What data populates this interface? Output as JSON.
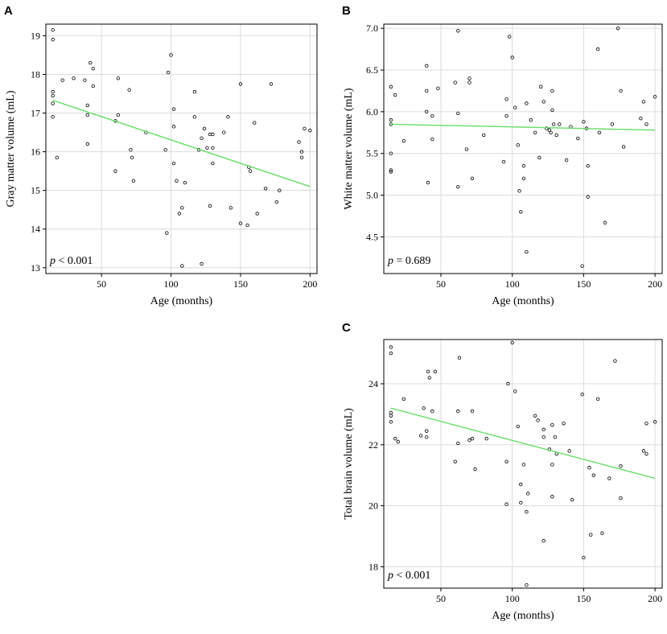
{
  "chart_data": [
    {
      "panel_letter": "A",
      "type": "scatter",
      "xlabel": "Age (months)",
      "ylabel": "Gray matter volume (mL)",
      "xlim": [
        10,
        205
      ],
      "ylim": [
        12.85,
        19.3
      ],
      "xticks": [
        50,
        100,
        150,
        200
      ],
      "yticks": [
        13,
        14,
        15,
        16,
        17,
        18,
        19
      ],
      "pvalue": {
        "p": "p",
        "text": " < 0.001"
      },
      "fit_line": {
        "color": "#66dd66",
        "x": [
          15,
          200
        ],
        "y": [
          17.33,
          15.1
        ]
      },
      "points": [
        [
          15,
          19.15
        ],
        [
          15,
          18.9
        ],
        [
          15,
          17.55
        ],
        [
          15,
          17.45
        ],
        [
          15,
          17.25
        ],
        [
          15,
          16.9
        ],
        [
          18,
          15.85
        ],
        [
          22,
          17.85
        ],
        [
          30,
          17.9
        ],
        [
          38,
          17.85
        ],
        [
          40,
          17.2
        ],
        [
          40,
          16.95
        ],
        [
          40,
          16.2
        ],
        [
          42,
          18.3
        ],
        [
          44,
          18.15
        ],
        [
          44,
          17.7
        ],
        [
          60,
          16.8
        ],
        [
          60,
          15.5
        ],
        [
          62,
          17.9
        ],
        [
          62,
          16.95
        ],
        [
          70,
          17.6
        ],
        [
          71,
          16.05
        ],
        [
          72,
          15.85
        ],
        [
          73,
          15.25
        ],
        [
          82,
          16.5
        ],
        [
          96,
          16.05
        ],
        [
          97,
          13.9
        ],
        [
          98,
          18.05
        ],
        [
          100,
          18.5
        ],
        [
          102,
          17.1
        ],
        [
          102,
          16.65
        ],
        [
          102,
          15.7
        ],
        [
          104,
          15.25
        ],
        [
          106,
          14.4
        ],
        [
          108,
          14.55
        ],
        [
          108,
          13.05
        ],
        [
          110,
          15.2
        ],
        [
          117,
          17.55
        ],
        [
          117,
          16.9
        ],
        [
          120,
          16.05
        ],
        [
          122,
          16.35
        ],
        [
          122,
          13.1
        ],
        [
          124,
          16.6
        ],
        [
          126,
          16.1
        ],
        [
          128,
          14.6
        ],
        [
          128,
          16.45
        ],
        [
          130,
          16.45
        ],
        [
          130,
          16.1
        ],
        [
          130,
          15.7
        ],
        [
          138,
          16.5
        ],
        [
          141,
          16.9
        ],
        [
          143,
          14.55
        ],
        [
          150,
          17.75
        ],
        [
          150,
          14.15
        ],
        [
          155,
          14.1
        ],
        [
          156,
          15.6
        ],
        [
          157,
          15.5
        ],
        [
          160,
          16.75
        ],
        [
          162,
          14.4
        ],
        [
          168,
          15.05
        ],
        [
          172,
          17.75
        ],
        [
          176,
          14.7
        ],
        [
          178,
          15.0
        ],
        [
          192,
          16.25
        ],
        [
          194,
          15.85
        ],
        [
          194,
          16.0
        ],
        [
          196,
          16.6
        ],
        [
          200,
          16.55
        ]
      ]
    },
    {
      "panel_letter": "B",
      "type": "scatter",
      "xlabel": "Age (months)",
      "ylabel": "White matter volume (mL)",
      "xlim": [
        10,
        205
      ],
      "ylim": [
        4.06,
        7.05
      ],
      "xticks": [
        50,
        100,
        150,
        200
      ],
      "yticks": [
        4.5,
        5.0,
        5.5,
        6.0,
        6.5,
        7.0
      ],
      "ytick_labels": [
        "4.5",
        "5.0",
        "5.5",
        "6.0",
        "6.5",
        "7.0"
      ],
      "pvalue": {
        "p": "p",
        "text": " = 0.689"
      },
      "fit_line": {
        "color": "#66dd66",
        "x": [
          15,
          200
        ],
        "y": [
          5.85,
          5.78
        ]
      },
      "points": [
        [
          15,
          6.3
        ],
        [
          15,
          5.9
        ],
        [
          15,
          5.85
        ],
        [
          15,
          5.5
        ],
        [
          15,
          5.3
        ],
        [
          15,
          5.28
        ],
        [
          18,
          6.2
        ],
        [
          24,
          5.65
        ],
        [
          40,
          6.55
        ],
        [
          40,
          6.25
        ],
        [
          40,
          6.0
        ],
        [
          41,
          5.15
        ],
        [
          44,
          5.95
        ],
        [
          44,
          5.67
        ],
        [
          48,
          6.28
        ],
        [
          60,
          6.35
        ],
        [
          62,
          6.97
        ],
        [
          62,
          5.98
        ],
        [
          62,
          5.1
        ],
        [
          68,
          5.55
        ],
        [
          70,
          6.4
        ],
        [
          70,
          6.35
        ],
        [
          72,
          5.2
        ],
        [
          80,
          5.72
        ],
        [
          94,
          5.4
        ],
        [
          96,
          6.15
        ],
        [
          96,
          5.95
        ],
        [
          98,
          6.9
        ],
        [
          100,
          6.65
        ],
        [
          102,
          6.05
        ],
        [
          104,
          5.6
        ],
        [
          105,
          5.05
        ],
        [
          106,
          4.8
        ],
        [
          108,
          5.35
        ],
        [
          108,
          5.2
        ],
        [
          110,
          4.32
        ],
        [
          110,
          6.1
        ],
        [
          113,
          5.9
        ],
        [
          116,
          5.75
        ],
        [
          119,
          5.45
        ],
        [
          120,
          6.3
        ],
        [
          122,
          6.12
        ],
        [
          124,
          5.8
        ],
        [
          126,
          5.78
        ],
        [
          127,
          5.75
        ],
        [
          128,
          6.25
        ],
        [
          128,
          6.02
        ],
        [
          129,
          5.85
        ],
        [
          131,
          5.72
        ],
        [
          133,
          5.85
        ],
        [
          138,
          5.42
        ],
        [
          141,
          5.82
        ],
        [
          146,
          5.68
        ],
        [
          149,
          4.15
        ],
        [
          150,
          5.88
        ],
        [
          152,
          5.8
        ],
        [
          153,
          5.35
        ],
        [
          153,
          4.98
        ],
        [
          160,
          6.75
        ],
        [
          161,
          5.75
        ],
        [
          165,
          4.67
        ],
        [
          170,
          5.85
        ],
        [
          174,
          7.0
        ],
        [
          176,
          6.25
        ],
        [
          178,
          5.58
        ],
        [
          190,
          5.92
        ],
        [
          192,
          6.12
        ],
        [
          194,
          5.85
        ],
        [
          200,
          6.18
        ]
      ]
    },
    {
      "panel_letter": "C",
      "type": "scatter",
      "xlabel": "Age (months)",
      "ylabel": "Total brain volume (mL)",
      "xlim": [
        10,
        205
      ],
      "ylim": [
        17.3,
        25.45
      ],
      "xticks": [
        50,
        100,
        150,
        200
      ],
      "yticks": [
        18,
        20,
        22,
        24
      ],
      "pvalue": {
        "p": "p",
        "text": " < 0.001"
      },
      "fit_line": {
        "color": "#66dd66",
        "x": [
          15,
          200
        ],
        "y": [
          23.2,
          20.9
        ]
      },
      "points": [
        [
          15,
          25.2
        ],
        [
          15,
          25.0
        ],
        [
          15,
          23.05
        ],
        [
          15,
          22.95
        ],
        [
          15,
          22.75
        ],
        [
          18,
          22.2
        ],
        [
          20,
          22.1
        ],
        [
          24,
          23.5
        ],
        [
          36,
          22.3
        ],
        [
          38,
          23.2
        ],
        [
          40,
          22.45
        ],
        [
          40,
          22.25
        ],
        [
          41,
          24.4
        ],
        [
          42,
          24.2
        ],
        [
          44,
          23.1
        ],
        [
          46,
          24.4
        ],
        [
          60,
          21.45
        ],
        [
          62,
          23.1
        ],
        [
          62,
          22.05
        ],
        [
          63,
          24.85
        ],
        [
          70,
          22.15
        ],
        [
          72,
          23.1
        ],
        [
          72,
          22.2
        ],
        [
          74,
          21.2
        ],
        [
          82,
          22.2
        ],
        [
          96,
          21.45
        ],
        [
          96,
          20.05
        ],
        [
          97,
          24.0
        ],
        [
          100,
          25.35
        ],
        [
          102,
          23.75
        ],
        [
          104,
          22.6
        ],
        [
          106,
          20.1
        ],
        [
          106,
          20.7
        ],
        [
          108,
          21.35
        ],
        [
          110,
          19.8
        ],
        [
          110,
          17.4
        ],
        [
          111,
          20.4
        ],
        [
          116,
          22.95
        ],
        [
          118,
          22.8
        ],
        [
          122,
          22.5
        ],
        [
          122,
          22.25
        ],
        [
          122,
          18.85
        ],
        [
          126,
          21.85
        ],
        [
          128,
          22.65
        ],
        [
          128,
          21.35
        ],
        [
          128,
          20.3
        ],
        [
          130,
          22.25
        ],
        [
          131,
          21.7
        ],
        [
          136,
          22.7
        ],
        [
          140,
          21.8
        ],
        [
          142,
          20.2
        ],
        [
          149,
          23.65
        ],
        [
          150,
          18.3
        ],
        [
          154,
          21.25
        ],
        [
          155,
          19.05
        ],
        [
          157,
          21.0
        ],
        [
          160,
          23.5
        ],
        [
          163,
          19.1
        ],
        [
          168,
          20.9
        ],
        [
          172,
          24.75
        ],
        [
          176,
          21.3
        ],
        [
          176,
          20.25
        ],
        [
          192,
          21.8
        ],
        [
          194,
          21.7
        ],
        [
          194,
          22.7
        ],
        [
          200,
          22.75
        ]
      ]
    }
  ]
}
